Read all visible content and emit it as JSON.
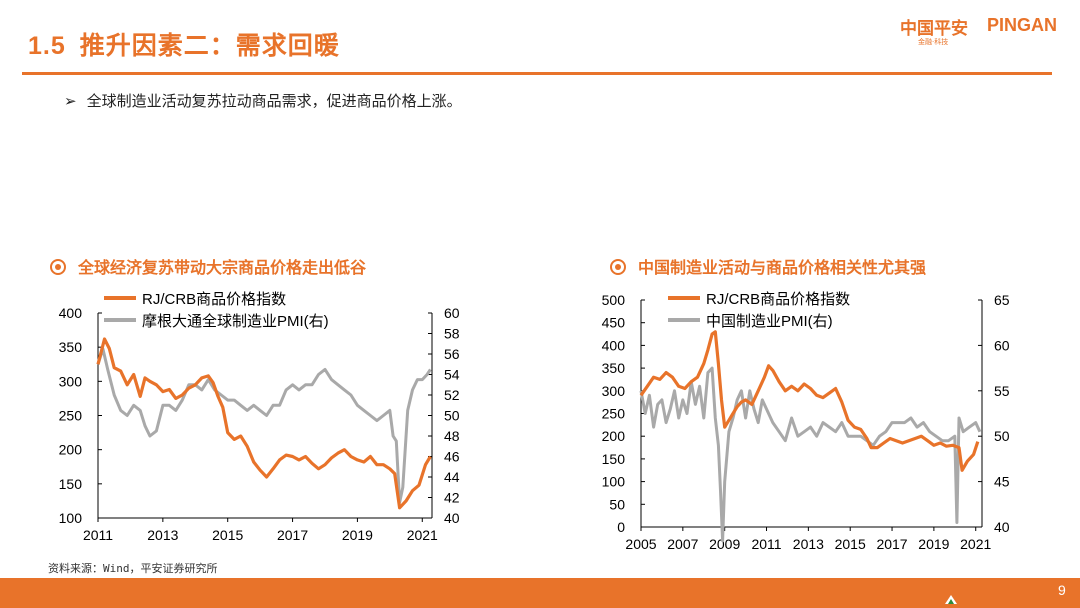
{
  "page": {
    "section_number": "1.5",
    "title": "推升因素二：需求回暖",
    "bullet_symbol": "➢",
    "bullet": "全球制造业活动复苏拉动商品需求，促进商品价格上涨。",
    "logo_cn": "中国平安",
    "logo_en": "PINGAN",
    "logo_sub": "金融·科技",
    "source": "资料来源：Wind，平安证券研究所",
    "page_number": "9",
    "colors": {
      "accent": "#e8732a",
      "series_grey": "#a9a9a9"
    }
  },
  "chart_data": [
    {
      "type": "line",
      "title": "全球经济复苏带动大宗商品价格走出低谷",
      "x_ticks": [
        "2011",
        "2013",
        "2015",
        "2017",
        "2019",
        "2021"
      ],
      "xlim": [
        2011,
        2021.3
      ],
      "ylim": [
        100,
        400
      ],
      "y_ticks": [
        "400",
        "350",
        "300",
        "250",
        "200",
        "150",
        "100"
      ],
      "y2lim": [
        40,
        60
      ],
      "y2_ticks": [
        "60",
        "58",
        "56",
        "54",
        "52",
        "50",
        "48",
        "46",
        "44",
        "42",
        "40"
      ],
      "legend": "top-left",
      "series": [
        {
          "name": "RJ/CRB商品价格指数",
          "axis": "left",
          "color": "#e8732a",
          "x": [
            2011.0,
            2011.2,
            2011.35,
            2011.5,
            2011.7,
            2011.9,
            2012.1,
            2012.3,
            2012.45,
            2012.6,
            2012.8,
            2013.0,
            2013.2,
            2013.4,
            2013.6,
            2013.8,
            2014.0,
            2014.2,
            2014.4,
            2014.55,
            2014.7,
            2014.85,
            2015.0,
            2015.2,
            2015.4,
            2015.6,
            2015.8,
            2016.0,
            2016.2,
            2016.4,
            2016.6,
            2016.8,
            2017.0,
            2017.2,
            2017.4,
            2017.6,
            2017.8,
            2018.0,
            2018.2,
            2018.4,
            2018.6,
            2018.8,
            2019.0,
            2019.2,
            2019.4,
            2019.6,
            2019.8,
            2020.0,
            2020.15,
            2020.3,
            2020.5,
            2020.7,
            2020.9,
            2021.1,
            2021.25
          ],
          "values": [
            325,
            362,
            348,
            320,
            315,
            295,
            310,
            278,
            305,
            300,
            295,
            285,
            288,
            275,
            280,
            290,
            295,
            305,
            308,
            298,
            278,
            262,
            225,
            215,
            220,
            205,
            182,
            170,
            160,
            172,
            185,
            192,
            190,
            185,
            190,
            180,
            172,
            178,
            188,
            195,
            200,
            190,
            185,
            182,
            190,
            178,
            178,
            172,
            165,
            115,
            125,
            140,
            148,
            178,
            190
          ]
        },
        {
          "name": "摩根大通全球制造业PMI(右)",
          "axis": "right",
          "color": "#a9a9a9",
          "x": [
            2011.0,
            2011.15,
            2011.3,
            2011.5,
            2011.7,
            2011.9,
            2012.1,
            2012.3,
            2012.45,
            2012.6,
            2012.8,
            2013.0,
            2013.2,
            2013.4,
            2013.6,
            2013.8,
            2014.0,
            2014.2,
            2014.4,
            2014.6,
            2014.8,
            2015.0,
            2015.2,
            2015.4,
            2015.6,
            2015.8,
            2016.0,
            2016.2,
            2016.4,
            2016.6,
            2016.8,
            2017.0,
            2017.2,
            2017.4,
            2017.6,
            2017.8,
            2018.0,
            2018.2,
            2018.4,
            2018.6,
            2018.8,
            2019.0,
            2019.2,
            2019.4,
            2019.6,
            2019.8,
            2020.0,
            2020.1,
            2020.2,
            2020.3,
            2020.4,
            2020.55,
            2020.7,
            2020.85,
            2021.0,
            2021.15,
            2021.25
          ],
          "values": [
            55.0,
            56.5,
            54.5,
            52.0,
            50.5,
            50.0,
            51.0,
            50.5,
            49.0,
            48.0,
            48.5,
            51.0,
            51.0,
            50.5,
            51.5,
            53.0,
            53.0,
            52.5,
            53.5,
            52.5,
            52.0,
            51.5,
            51.5,
            51.0,
            50.5,
            51.0,
            50.5,
            50.0,
            51.0,
            51.0,
            52.5,
            53.0,
            52.5,
            53.0,
            53.0,
            54.0,
            54.5,
            53.5,
            53.0,
            52.5,
            52.0,
            51.0,
            50.5,
            50.0,
            49.5,
            50.0,
            50.5,
            48.0,
            47.5,
            41.5,
            43.0,
            50.5,
            52.5,
            53.5,
            53.5,
            54.0,
            54.5
          ]
        }
      ]
    },
    {
      "type": "line",
      "title": "中国制造业活动与商品价格相关性尤其强",
      "x_ticks": [
        "2005",
        "2007",
        "2009",
        "2011",
        "2013",
        "2015",
        "2017",
        "2019",
        "2021"
      ],
      "xlim": [
        2005,
        2021.3
      ],
      "ylim": [
        0,
        500
      ],
      "y_ticks": [
        "500",
        "450",
        "400",
        "350",
        "300",
        "250",
        "200",
        "150",
        "100",
        "50",
        "0"
      ],
      "y2lim": [
        40,
        65
      ],
      "y2_ticks": [
        "65",
        "60",
        "55",
        "50",
        "45",
        "40"
      ],
      "legend": "top-center",
      "series": [
        {
          "name": "RJ/CRB商品价格指数",
          "axis": "left",
          "color": "#e8732a",
          "x": [
            2005.0,
            2005.3,
            2005.6,
            2005.9,
            2006.2,
            2006.5,
            2006.8,
            2007.1,
            2007.4,
            2007.7,
            2008.0,
            2008.2,
            2008.4,
            2008.55,
            2008.7,
            2008.85,
            2009.0,
            2009.2,
            2009.4,
            2009.6,
            2009.8,
            2010.0,
            2010.3,
            2010.6,
            2010.9,
            2011.1,
            2011.3,
            2011.6,
            2011.9,
            2012.2,
            2012.5,
            2012.8,
            2013.1,
            2013.4,
            2013.7,
            2014.0,
            2014.3,
            2014.6,
            2014.9,
            2015.2,
            2015.5,
            2015.8,
            2016.0,
            2016.3,
            2016.6,
            2016.9,
            2017.2,
            2017.5,
            2017.8,
            2018.1,
            2018.4,
            2018.7,
            2019.0,
            2019.3,
            2019.6,
            2019.9,
            2020.2,
            2020.35,
            2020.6,
            2020.9,
            2021.1
          ],
          "values": [
            290,
            310,
            330,
            325,
            340,
            330,
            310,
            305,
            320,
            330,
            360,
            390,
            425,
            430,
            360,
            280,
            220,
            235,
            250,
            265,
            275,
            280,
            270,
            300,
            330,
            355,
            345,
            320,
            300,
            310,
            300,
            315,
            305,
            290,
            285,
            295,
            305,
            275,
            235,
            220,
            215,
            195,
            175,
            175,
            185,
            195,
            190,
            185,
            190,
            195,
            200,
            190,
            180,
            185,
            178,
            180,
            175,
            125,
            145,
            160,
            188
          ]
        },
        {
          "name": "中国制造业PMI(右)",
          "axis": "right",
          "color": "#a9a9a9",
          "x": [
            2005.0,
            2005.2,
            2005.4,
            2005.6,
            2005.8,
            2006.0,
            2006.2,
            2006.4,
            2006.6,
            2006.8,
            2007.0,
            2007.2,
            2007.4,
            2007.6,
            2007.8,
            2008.0,
            2008.2,
            2008.4,
            2008.55,
            2008.7,
            2008.8,
            2008.9,
            2009.0,
            2009.2,
            2009.4,
            2009.6,
            2009.8,
            2010.0,
            2010.2,
            2010.4,
            2010.6,
            2010.8,
            2011.0,
            2011.3,
            2011.6,
            2011.9,
            2012.2,
            2012.5,
            2012.8,
            2013.1,
            2013.4,
            2013.7,
            2014.0,
            2014.3,
            2014.6,
            2014.9,
            2015.2,
            2015.5,
            2015.8,
            2016.1,
            2016.4,
            2016.7,
            2017.0,
            2017.3,
            2017.6,
            2017.9,
            2018.2,
            2018.5,
            2018.8,
            2019.1,
            2019.4,
            2019.7,
            2020.0,
            2020.1,
            2020.2,
            2020.4,
            2020.7,
            2021.0,
            2021.2
          ],
          "values": [
            55.0,
            52.5,
            54.5,
            51.0,
            53.5,
            54.0,
            51.5,
            53.0,
            55.0,
            52.0,
            54.0,
            52.5,
            56.0,
            53.5,
            55.5,
            52.0,
            57.0,
            57.5,
            52.0,
            49.0,
            44.0,
            38.5,
            45.0,
            50.5,
            52.0,
            54.0,
            55.0,
            52.0,
            55.0,
            53.0,
            51.5,
            54.0,
            53.0,
            51.5,
            50.5,
            49.5,
            52.0,
            50.0,
            50.5,
            51.0,
            50.0,
            51.5,
            51.0,
            50.5,
            51.5,
            50.0,
            50.0,
            50.0,
            49.5,
            49.0,
            50.0,
            50.5,
            51.5,
            51.5,
            51.5,
            52.0,
            51.0,
            51.5,
            50.5,
            50.0,
            49.5,
            49.5,
            50.0,
            40.5,
            52.0,
            50.5,
            51.0,
            51.5,
            50.5
          ]
        }
      ]
    }
  ]
}
